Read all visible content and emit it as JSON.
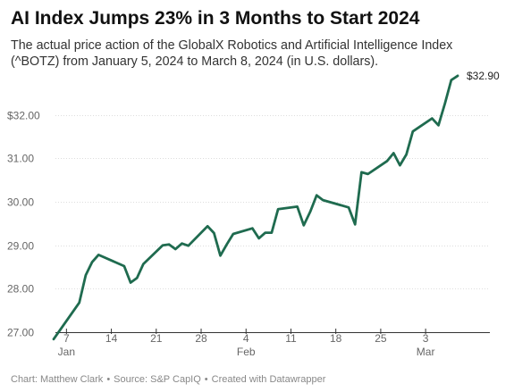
{
  "header": {
    "title": "AI Index Jumps 23% in 3 Months to Start 2024",
    "subtitle": "The actual price action of the GlobalX Robotics and Artificial Intelligence Index (^BOTZ) from January 5, 2024 to March 8, 2024 (in U.S. dollars)."
  },
  "footer": {
    "chart_credit": "Chart: Matthew Clark",
    "source": "Source: S&P CapIQ",
    "tool": "Created with Datawrapper"
  },
  "colors": {
    "line": "#1f6b4f",
    "grid": "#dddddd",
    "tick_text": "#666666"
  },
  "chart_data": {
    "type": "line",
    "title": "AI Index Jumps 23% in 3 Months to Start 2024",
    "xlabel": "",
    "ylabel": "",
    "ylim": [
      27,
      33
    ],
    "y_ticks": [
      27,
      28,
      29,
      30,
      31,
      32
    ],
    "y_tick_labels": [
      "27.00",
      "28.00",
      "29.00",
      "30.00",
      "31.00",
      "$32.00"
    ],
    "x_ticks": [
      {
        "date": "2024-01-07",
        "label": "7",
        "sublabel": "Jan"
      },
      {
        "date": "2024-01-14",
        "label": "14",
        "sublabel": ""
      },
      {
        "date": "2024-01-21",
        "label": "21",
        "sublabel": ""
      },
      {
        "date": "2024-01-28",
        "label": "28",
        "sublabel": ""
      },
      {
        "date": "2024-02-04",
        "label": "4",
        "sublabel": "Feb"
      },
      {
        "date": "2024-02-11",
        "label": "11",
        "sublabel": ""
      },
      {
        "date": "2024-02-18",
        "label": "18",
        "sublabel": ""
      },
      {
        "date": "2024-02-25",
        "label": "25",
        "sublabel": ""
      },
      {
        "date": "2024-03-03",
        "label": "3",
        "sublabel": "Mar"
      }
    ],
    "end_label": "$32.90",
    "grid": true,
    "series": [
      {
        "points": [
          {
            "x": "2024-01-05",
            "y": 26.84
          },
          {
            "x": "2024-01-09",
            "y": 27.68
          },
          {
            "x": "2024-01-10",
            "y": 28.31
          },
          {
            "x": "2024-01-11",
            "y": 28.61
          },
          {
            "x": "2024-01-12",
            "y": 28.78
          },
          {
            "x": "2024-01-16",
            "y": 28.52
          },
          {
            "x": "2024-01-17",
            "y": 28.14
          },
          {
            "x": "2024-01-18",
            "y": 28.25
          },
          {
            "x": "2024-01-19",
            "y": 28.57
          },
          {
            "x": "2024-01-22",
            "y": 29.0
          },
          {
            "x": "2024-01-23",
            "y": 29.02
          },
          {
            "x": "2024-01-24",
            "y": 28.91
          },
          {
            "x": "2024-01-25",
            "y": 29.04
          },
          {
            "x": "2024-01-26",
            "y": 28.99
          },
          {
            "x": "2024-01-29",
            "y": 29.44
          },
          {
            "x": "2024-01-30",
            "y": 29.28
          },
          {
            "x": "2024-01-31",
            "y": 28.76
          },
          {
            "x": "2024-02-01",
            "y": 29.02
          },
          {
            "x": "2024-02-02",
            "y": 29.26
          },
          {
            "x": "2024-02-05",
            "y": 29.39
          },
          {
            "x": "2024-02-06",
            "y": 29.16
          },
          {
            "x": "2024-02-07",
            "y": 29.29
          },
          {
            "x": "2024-02-08",
            "y": 29.29
          },
          {
            "x": "2024-02-09",
            "y": 29.83
          },
          {
            "x": "2024-02-12",
            "y": 29.89
          },
          {
            "x": "2024-02-13",
            "y": 29.46
          },
          {
            "x": "2024-02-14",
            "y": 29.77
          },
          {
            "x": "2024-02-15",
            "y": 30.15
          },
          {
            "x": "2024-02-16",
            "y": 30.04
          },
          {
            "x": "2024-02-20",
            "y": 29.87
          },
          {
            "x": "2024-02-21",
            "y": 29.48
          },
          {
            "x": "2024-02-22",
            "y": 30.68
          },
          {
            "x": "2024-02-23",
            "y": 30.64
          },
          {
            "x": "2024-02-26",
            "y": 30.94
          },
          {
            "x": "2024-02-27",
            "y": 31.12
          },
          {
            "x": "2024-02-28",
            "y": 30.84
          },
          {
            "x": "2024-02-29",
            "y": 31.09
          },
          {
            "x": "2024-03-01",
            "y": 31.62
          },
          {
            "x": "2024-03-04",
            "y": 31.92
          },
          {
            "x": "2024-03-05",
            "y": 31.76
          },
          {
            "x": "2024-03-06",
            "y": 32.26
          },
          {
            "x": "2024-03-07",
            "y": 32.8
          },
          {
            "x": "2024-03-08",
            "y": 32.9
          }
        ]
      }
    ]
  }
}
